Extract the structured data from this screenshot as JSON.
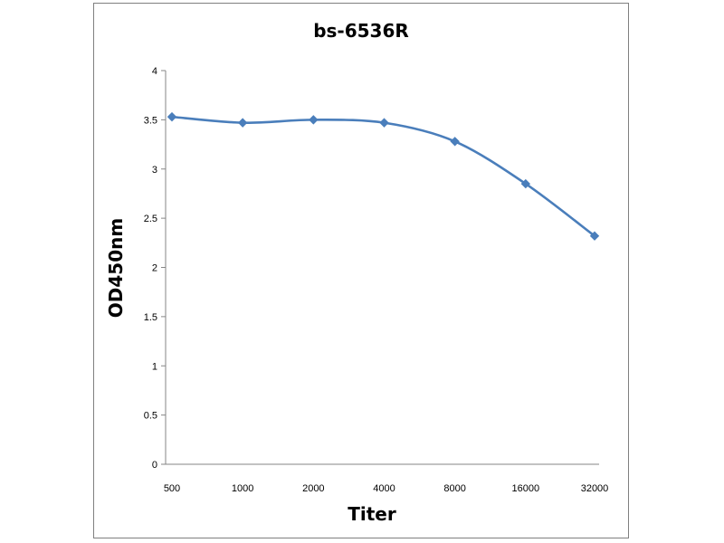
{
  "chart_data": {
    "type": "line",
    "title": "bs-6536R",
    "xlabel": "Titer",
    "ylabel": "OD450nm",
    "categories": [
      "500",
      "1000",
      "2000",
      "4000",
      "8000",
      "16000",
      "32000"
    ],
    "series": [
      {
        "values": [
          3.53,
          3.47,
          3.5,
          3.47,
          3.28,
          2.85,
          2.32
        ],
        "color": "#4a7ebb",
        "marker": "diamond",
        "smooth": true
      }
    ],
    "ylim": [
      0,
      4
    ],
    "yticks": [
      "0",
      "0.5",
      "1",
      "1.5",
      "2",
      "2.5",
      "3",
      "3.5",
      "4"
    ],
    "grid": false,
    "legend": "none"
  }
}
